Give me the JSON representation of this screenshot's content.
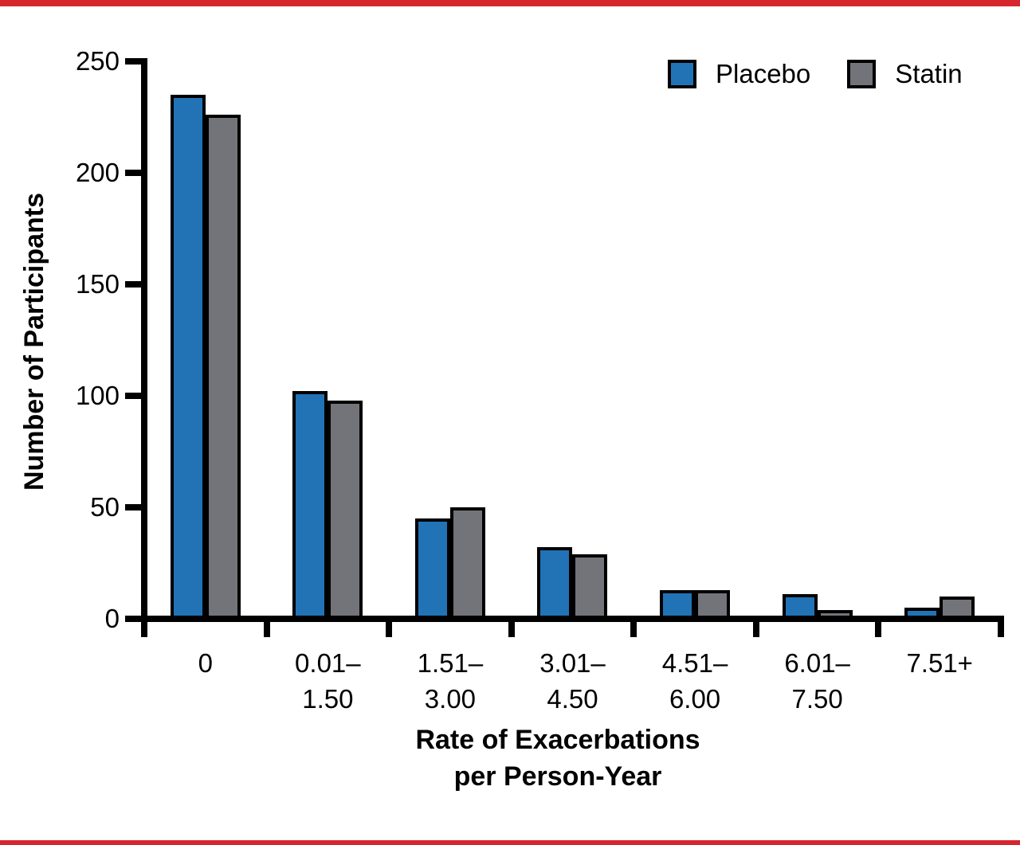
{
  "figure": {
    "background": "#ffffff",
    "top_band_color": "#d6252d",
    "bottom_band_color": "#d6252d"
  },
  "chart_data": {
    "type": "bar",
    "title": "",
    "ylabel": "Number of Participants",
    "xlabel_lines": [
      "Rate of Exacerbations",
      "per Person-Year"
    ],
    "categories": [
      [
        "0"
      ],
      [
        "0.01–",
        "1.50"
      ],
      [
        "1.51–",
        "3.00"
      ],
      [
        "3.01–",
        "4.50"
      ],
      [
        "4.51–",
        "6.00"
      ],
      [
        "6.01–",
        "7.50"
      ],
      [
        "7.51+"
      ]
    ],
    "series": [
      {
        "name": "Placebo",
        "color": "#2173b6",
        "values": [
          235,
          102,
          45,
          32,
          13,
          11,
          5
        ]
      },
      {
        "name": "Statin",
        "color": "#737479",
        "values": [
          226,
          98,
          50,
          29,
          13,
          4,
          10
        ]
      }
    ],
    "ylim": [
      0,
      250
    ],
    "yticks": [
      0,
      50,
      100,
      150,
      200,
      250
    ],
    "grid": false,
    "legend_position": "top-right",
    "axis_color": "#000000",
    "bar_border_color": "#000000"
  }
}
